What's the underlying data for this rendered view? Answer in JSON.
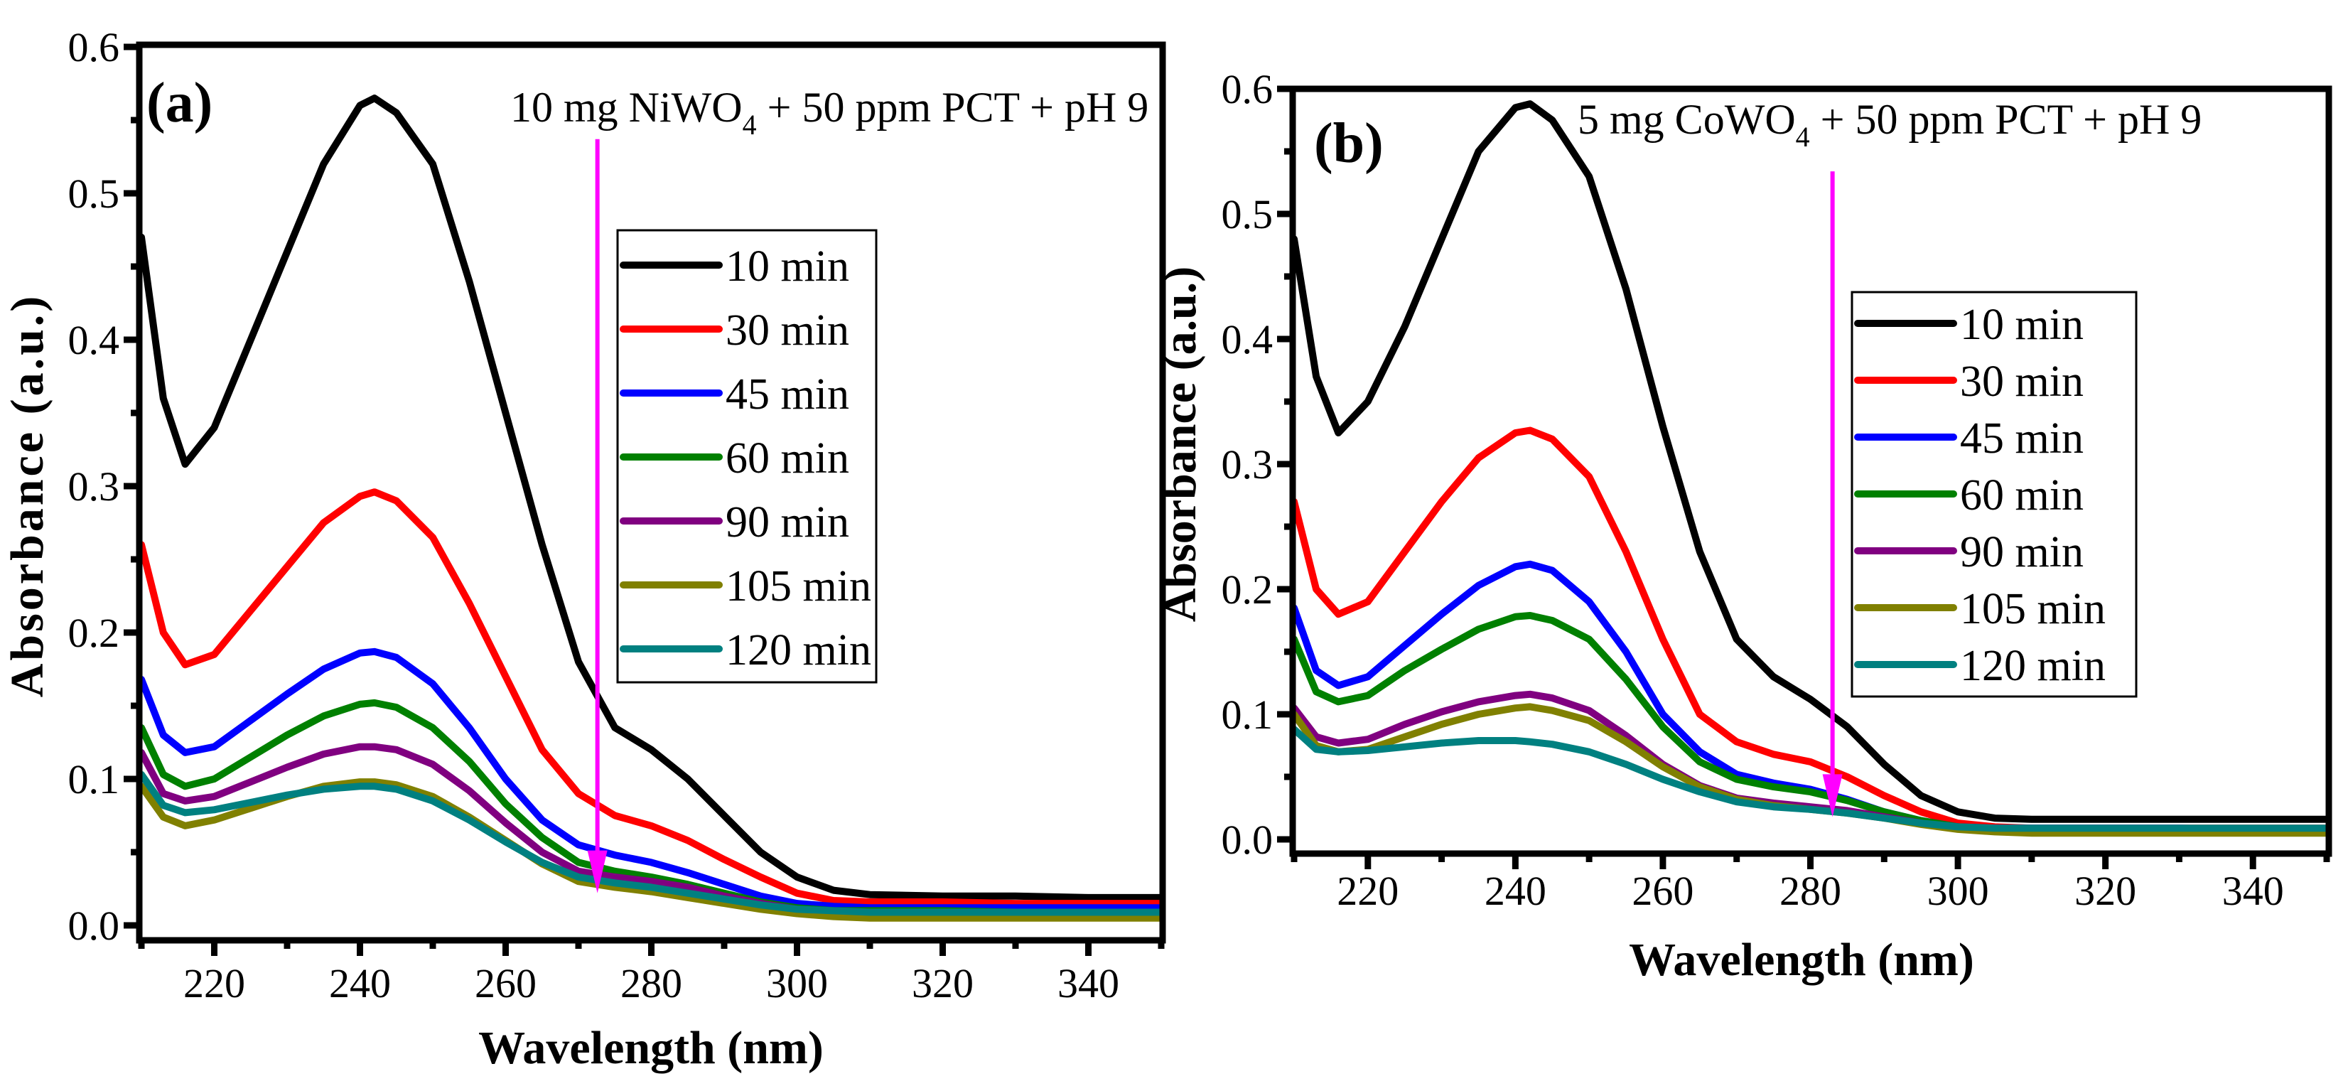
{
  "chart_data": [
    {
      "type": "line",
      "panel_label": "(a)",
      "annotation": {
        "prefix": "10 mg NiWO",
        "sub": "4",
        "suffix": " + 50 ppm PCT + pH 9"
      },
      "xlabel": "Wavelength (nm)",
      "ylabel": "Absorbance (a.u.)",
      "xlim": [
        210,
        350
      ],
      "ylim": [
        0,
        0.6
      ],
      "xticks": [
        220,
        240,
        260,
        280,
        300,
        320,
        340
      ],
      "yticks": [
        "0.0",
        "0.1",
        "0.2",
        "0.3",
        "0.4",
        "0.5",
        "0.6"
      ],
      "grid": false,
      "legend_placement": "center-right",
      "arrow": {
        "x": 272.6,
        "y_from": 0.537,
        "y_to": 0.022,
        "color": "#ff00ff"
      },
      "x": [
        210,
        213,
        216,
        220,
        225,
        230,
        235,
        240,
        242,
        245,
        250,
        255,
        260,
        265,
        270,
        275,
        280,
        285,
        290,
        295,
        300,
        305,
        310,
        320,
        330,
        340,
        350
      ],
      "series": [
        {
          "name": "10 min",
          "color": "#000000",
          "values": [
            0.47,
            0.36,
            0.315,
            0.34,
            0.4,
            0.46,
            0.52,
            0.56,
            0.565,
            0.555,
            0.52,
            0.44,
            0.35,
            0.26,
            0.18,
            0.135,
            0.12,
            0.1,
            0.075,
            0.05,
            0.033,
            0.024,
            0.021,
            0.02,
            0.02,
            0.019,
            0.019
          ]
        },
        {
          "name": "30 min",
          "color": "#ff0000",
          "values": [
            0.26,
            0.2,
            0.178,
            0.185,
            0.215,
            0.245,
            0.275,
            0.293,
            0.296,
            0.29,
            0.265,
            0.22,
            0.17,
            0.12,
            0.09,
            0.075,
            0.068,
            0.058,
            0.045,
            0.033,
            0.022,
            0.017,
            0.016,
            0.016,
            0.015,
            0.015,
            0.015
          ]
        },
        {
          "name": "45 min",
          "color": "#0000ff",
          "values": [
            0.168,
            0.13,
            0.118,
            0.122,
            0.14,
            0.158,
            0.175,
            0.186,
            0.187,
            0.183,
            0.165,
            0.135,
            0.1,
            0.072,
            0.055,
            0.048,
            0.043,
            0.036,
            0.028,
            0.02,
            0.015,
            0.013,
            0.012,
            0.012,
            0.012,
            0.012,
            0.012
          ]
        },
        {
          "name": "60 min",
          "color": "#008000",
          "values": [
            0.135,
            0.103,
            0.095,
            0.1,
            0.115,
            0.13,
            0.143,
            0.151,
            0.152,
            0.149,
            0.135,
            0.112,
            0.083,
            0.06,
            0.043,
            0.037,
            0.033,
            0.028,
            0.022,
            0.016,
            0.012,
            0.01,
            0.01,
            0.01,
            0.009,
            0.009,
            0.009
          ]
        },
        {
          "name": "90 min",
          "color": "#800080",
          "values": [
            0.118,
            0.09,
            0.085,
            0.088,
            0.098,
            0.108,
            0.117,
            0.122,
            0.122,
            0.12,
            0.11,
            0.092,
            0.07,
            0.05,
            0.037,
            0.033,
            0.03,
            0.026,
            0.02,
            0.015,
            0.011,
            0.009,
            0.009,
            0.009,
            0.009,
            0.009,
            0.009
          ]
        },
        {
          "name": "105 min",
          "color": "#808000",
          "values": [
            0.095,
            0.074,
            0.068,
            0.072,
            0.08,
            0.088,
            0.095,
            0.098,
            0.098,
            0.096,
            0.088,
            0.074,
            0.058,
            0.042,
            0.03,
            0.026,
            0.023,
            0.019,
            0.015,
            0.011,
            0.008,
            0.006,
            0.005,
            0.005,
            0.005,
            0.005,
            0.005
          ]
        },
        {
          "name": "120 min",
          "color": "#008080",
          "values": [
            0.103,
            0.082,
            0.077,
            0.079,
            0.084,
            0.089,
            0.093,
            0.095,
            0.095,
            0.093,
            0.085,
            0.072,
            0.057,
            0.043,
            0.033,
            0.029,
            0.026,
            0.022,
            0.018,
            0.014,
            0.011,
            0.01,
            0.009,
            0.009,
            0.009,
            0.009,
            0.009
          ]
        }
      ]
    },
    {
      "type": "line",
      "panel_label": "(b)",
      "annotation": {
        "prefix": "5 mg CoWO",
        "sub": "4",
        "suffix": " + 50 ppm PCT + pH 9"
      },
      "xlabel": "Wavelength (nm)",
      "ylabel": "Absorbance (a.u.)",
      "xlim": [
        210,
        350
      ],
      "ylim": [
        0,
        0.6
      ],
      "xticks": [
        220,
        240,
        260,
        280,
        300,
        320,
        340
      ],
      "yticks": [
        "0.0",
        "0.1",
        "0.2",
        "0.3",
        "0.4",
        "0.5",
        "0.6"
      ],
      "grid": false,
      "legend_placement": "center-right",
      "arrow": {
        "x": 283,
        "y_from": 0.534,
        "y_to": 0.018,
        "color": "#ff00ff"
      },
      "x": [
        210,
        213,
        216,
        220,
        225,
        230,
        235,
        240,
        242,
        245,
        250,
        255,
        260,
        265,
        270,
        275,
        280,
        285,
        290,
        295,
        300,
        305,
        310,
        320,
        330,
        340,
        350
      ],
      "series": [
        {
          "name": "10 min",
          "color": "#000000",
          "values": [
            0.48,
            0.37,
            0.325,
            0.35,
            0.41,
            0.48,
            0.55,
            0.585,
            0.588,
            0.575,
            0.53,
            0.44,
            0.33,
            0.23,
            0.16,
            0.13,
            0.112,
            0.09,
            0.06,
            0.035,
            0.022,
            0.017,
            0.016,
            0.016,
            0.016,
            0.016,
            0.016
          ]
        },
        {
          "name": "30 min",
          "color": "#ff0000",
          "values": [
            0.27,
            0.2,
            0.18,
            0.19,
            0.23,
            0.27,
            0.305,
            0.325,
            0.327,
            0.32,
            0.29,
            0.23,
            0.16,
            0.1,
            0.078,
            0.068,
            0.062,
            0.05,
            0.035,
            0.022,
            0.013,
            0.01,
            0.009,
            0.009,
            0.009,
            0.009,
            0.009
          ]
        },
        {
          "name": "45 min",
          "color": "#0000ff",
          "values": [
            0.185,
            0.135,
            0.123,
            0.13,
            0.155,
            0.18,
            0.203,
            0.218,
            0.22,
            0.215,
            0.19,
            0.15,
            0.1,
            0.07,
            0.052,
            0.045,
            0.04,
            0.032,
            0.022,
            0.015,
            0.01,
            0.009,
            0.009,
            0.009,
            0.009,
            0.008,
            0.008
          ]
        },
        {
          "name": "60 min",
          "color": "#008000",
          "values": [
            0.16,
            0.118,
            0.11,
            0.115,
            0.135,
            0.152,
            0.168,
            0.178,
            0.179,
            0.175,
            0.16,
            0.128,
            0.09,
            0.062,
            0.048,
            0.042,
            0.038,
            0.031,
            0.022,
            0.015,
            0.01,
            0.008,
            0.008,
            0.008,
            0.008,
            0.008,
            0.008
          ]
        },
        {
          "name": "90 min",
          "color": "#800080",
          "values": [
            0.105,
            0.082,
            0.077,
            0.08,
            0.092,
            0.102,
            0.11,
            0.115,
            0.116,
            0.113,
            0.103,
            0.083,
            0.06,
            0.043,
            0.033,
            0.029,
            0.026,
            0.023,
            0.018,
            0.013,
            0.009,
            0.007,
            0.007,
            0.007,
            0.007,
            0.007,
            0.007
          ]
        },
        {
          "name": "105 min",
          "color": "#808000",
          "values": [
            0.1,
            0.075,
            0.07,
            0.072,
            0.082,
            0.092,
            0.1,
            0.105,
            0.106,
            0.103,
            0.095,
            0.078,
            0.058,
            0.042,
            0.032,
            0.027,
            0.024,
            0.021,
            0.017,
            0.012,
            0.008,
            0.006,
            0.005,
            0.005,
            0.005,
            0.005,
            0.005
          ]
        },
        {
          "name": "120 min",
          "color": "#008080",
          "values": [
            0.088,
            0.072,
            0.07,
            0.071,
            0.074,
            0.077,
            0.079,
            0.079,
            0.078,
            0.076,
            0.07,
            0.06,
            0.048,
            0.038,
            0.03,
            0.026,
            0.024,
            0.021,
            0.017,
            0.013,
            0.01,
            0.009,
            0.009,
            0.009,
            0.009,
            0.009,
            0.009
          ]
        }
      ]
    }
  ]
}
